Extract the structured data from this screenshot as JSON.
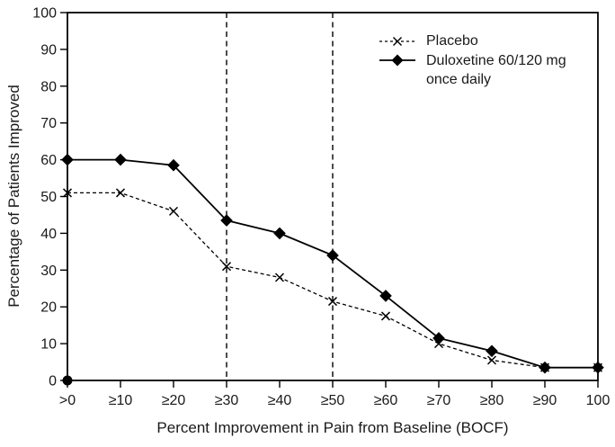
{
  "chart_data": {
    "type": "line",
    "title": "",
    "xlabel": "Percent Improvement in Pain from Baseline (BOCF)",
    "ylabel": "Percentage of Patients Improved",
    "categories": [
      ">0",
      "≥10",
      "≥20",
      "≥30",
      "≥40",
      "≥50",
      "≥60",
      "≥70",
      "≥80",
      "≥90",
      "100"
    ],
    "y_ticks": [
      0,
      10,
      20,
      30,
      40,
      50,
      60,
      70,
      80,
      90,
      100
    ],
    "ylim": [
      0,
      100
    ],
    "grid": false,
    "series": [
      {
        "name": "Placebo",
        "marker": "x",
        "line_style": "dashed",
        "color": "#000000",
        "values": [
          51,
          51,
          46,
          31,
          28,
          21.5,
          17.5,
          10,
          5.5,
          3.5,
          3.5
        ]
      },
      {
        "name": "Duloxetine 60/120 mg once daily",
        "marker": "diamond",
        "line_style": "solid",
        "color": "#000000",
        "values": [
          60,
          60,
          58.5,
          43.5,
          40,
          34,
          23,
          11.5,
          8,
          3.5,
          3.5
        ]
      }
    ],
    "reference_lines": [
      {
        "category": "≥30",
        "style": "dashed-vertical"
      },
      {
        "category": "≥50",
        "style": "dashed-vertical"
      }
    ],
    "origin_marker": true,
    "legend": {
      "position": "top-right-inside",
      "entries": [
        {
          "lines": [
            "Placebo"
          ]
        },
        {
          "lines": [
            "Duloxetine 60/120 mg",
            "once daily"
          ]
        }
      ]
    },
    "colors": {
      "foreground": "#000000",
      "background": "#ffffff"
    }
  }
}
